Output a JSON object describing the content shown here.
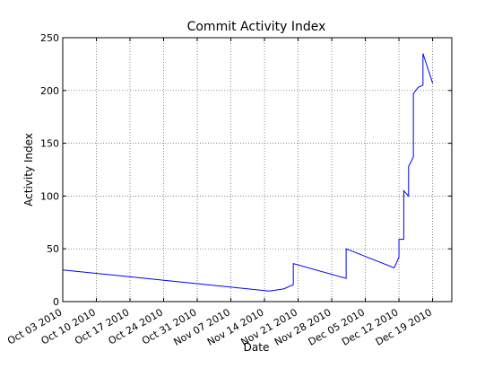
{
  "chart_data": {
    "type": "line",
    "title": "Commit Activity Index",
    "xlabel": "Date",
    "ylabel": "Activity Index",
    "ylim": [
      0,
      250
    ],
    "xlim": [
      "2010-10-03",
      "2010-12-23"
    ],
    "grid": true,
    "y_ticks": [
      0,
      50,
      100,
      150,
      200,
      250
    ],
    "x_ticks": [
      {
        "date": "2010-10-03",
        "label": "Oct 03 2010"
      },
      {
        "date": "2010-10-10",
        "label": "Oct 10 2010"
      },
      {
        "date": "2010-10-17",
        "label": "Oct 17 2010"
      },
      {
        "date": "2010-10-24",
        "label": "Oct 24 2010"
      },
      {
        "date": "2010-10-31",
        "label": "Oct 31 2010"
      },
      {
        "date": "2010-11-07",
        "label": "Nov 07 2010"
      },
      {
        "date": "2010-11-14",
        "label": "Nov 14 2010"
      },
      {
        "date": "2010-11-21",
        "label": "Nov 21 2010"
      },
      {
        "date": "2010-11-28",
        "label": "Nov 28 2010"
      },
      {
        "date": "2010-12-05",
        "label": "Dec 05 2010"
      },
      {
        "date": "2010-12-12",
        "label": "Dec 12 2010"
      },
      {
        "date": "2010-12-19",
        "label": "Dec 19 2010"
      }
    ],
    "series": [
      {
        "color": "#0000ff",
        "points": [
          {
            "x": "2010-10-03",
            "y": 30
          },
          {
            "x": "2010-11-15",
            "y": 10
          },
          {
            "x": "2010-11-18",
            "y": 12
          },
          {
            "x": "2010-11-20",
            "y": 16
          },
          {
            "x": "2010-11-20",
            "y": 36
          },
          {
            "x": "2010-12-01",
            "y": 22
          },
          {
            "x": "2010-12-01",
            "y": 50
          },
          {
            "x": "2010-12-11",
            "y": 32
          },
          {
            "x": "2010-12-12",
            "y": 42
          },
          {
            "x": "2010-12-12",
            "y": 59
          },
          {
            "x": "2010-12-13",
            "y": 59
          },
          {
            "x": "2010-12-13",
            "y": 105
          },
          {
            "x": "2010-12-14",
            "y": 100
          },
          {
            "x": "2010-12-14",
            "y": 128
          },
          {
            "x": "2010-12-15",
            "y": 137
          },
          {
            "x": "2010-12-15",
            "y": 197
          },
          {
            "x": "2010-12-16",
            "y": 203
          },
          {
            "x": "2010-12-17",
            "y": 205
          },
          {
            "x": "2010-12-17",
            "y": 235
          },
          {
            "x": "2010-12-19",
            "y": 207
          }
        ]
      }
    ]
  }
}
